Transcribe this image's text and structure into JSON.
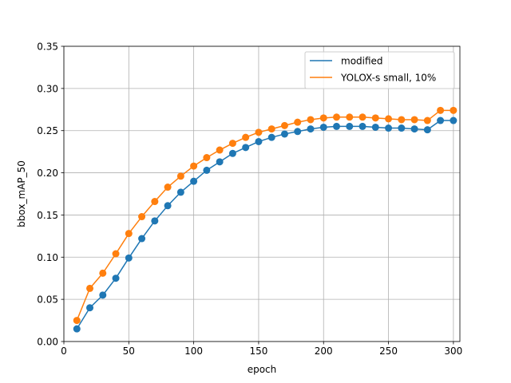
{
  "chart_data": {
    "type": "line",
    "title": "",
    "xlabel": "epoch",
    "ylabel": "bbox_mAP_50",
    "xlim": [
      0,
      305
    ],
    "ylim": [
      0,
      0.35
    ],
    "xticks": [
      0,
      50,
      100,
      150,
      200,
      250,
      300
    ],
    "xtick_labels": [
      "0",
      "50",
      "100",
      "150",
      "200",
      "250",
      "300"
    ],
    "yticks": [
      0,
      0.05,
      0.1,
      0.15,
      0.2,
      0.25,
      0.3,
      0.35
    ],
    "ytick_labels": [
      "0.00",
      "0.05",
      "0.10",
      "0.15",
      "0.20",
      "0.25",
      "0.30",
      "0.35"
    ],
    "grid": true,
    "legend_position": "top-right",
    "x": [
      10,
      20,
      30,
      40,
      50,
      60,
      70,
      80,
      90,
      100,
      110,
      120,
      130,
      140,
      150,
      160,
      170,
      180,
      190,
      200,
      210,
      220,
      230,
      240,
      250,
      260,
      270,
      280,
      290,
      300
    ],
    "series": [
      {
        "name": "modified",
        "color": "#1f77b4",
        "values": [
          0.015,
          0.04,
          0.055,
          0.075,
          0.099,
          0.122,
          0.143,
          0.161,
          0.177,
          0.19,
          0.203,
          0.213,
          0.223,
          0.23,
          0.237,
          0.242,
          0.246,
          0.249,
          0.252,
          0.254,
          0.255,
          0.255,
          0.255,
          0.254,
          0.253,
          0.253,
          0.252,
          0.251,
          0.262,
          0.262
        ]
      },
      {
        "name": "YOLOX-s small, 10%",
        "color": "#ff7f0e",
        "values": [
          0.025,
          0.063,
          0.081,
          0.104,
          0.128,
          0.148,
          0.166,
          0.183,
          0.196,
          0.208,
          0.218,
          0.227,
          0.235,
          0.242,
          0.248,
          0.252,
          0.256,
          0.26,
          0.263,
          0.265,
          0.266,
          0.266,
          0.266,
          0.265,
          0.264,
          0.263,
          0.263,
          0.262,
          0.274,
          0.274
        ]
      }
    ]
  }
}
